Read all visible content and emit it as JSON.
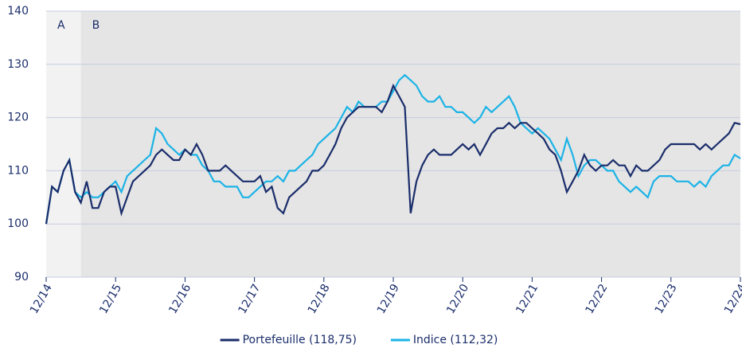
{
  "chart_data": {
    "type": "line",
    "x": [
      "12/14",
      "01/15",
      "02/15",
      "03/15",
      "04/15",
      "05/15",
      "06/15",
      "07/15",
      "08/15",
      "09/15",
      "10/15",
      "11/15",
      "12/15",
      "01/16",
      "02/16",
      "03/16",
      "04/16",
      "05/16",
      "06/16",
      "07/16",
      "08/16",
      "09/16",
      "10/16",
      "11/16",
      "12/16",
      "01/17",
      "02/17",
      "03/17",
      "04/17",
      "05/17",
      "06/17",
      "07/17",
      "08/17",
      "09/17",
      "10/17",
      "11/17",
      "12/17",
      "01/18",
      "02/18",
      "03/18",
      "04/18",
      "05/18",
      "06/18",
      "07/18",
      "08/18",
      "09/18",
      "10/18",
      "11/18",
      "12/18",
      "01/19",
      "02/19",
      "03/19",
      "04/19",
      "05/19",
      "06/19",
      "07/19",
      "08/19",
      "09/19",
      "10/19",
      "11/19",
      "12/19",
      "01/20",
      "02/20",
      "03/20",
      "04/20",
      "05/20",
      "06/20",
      "07/20",
      "08/20",
      "09/20",
      "10/20",
      "11/20",
      "12/20",
      "01/21",
      "02/21",
      "03/21",
      "04/21",
      "05/21",
      "06/21",
      "07/21",
      "08/21",
      "09/21",
      "10/21",
      "11/21",
      "12/21",
      "01/22",
      "02/22",
      "03/22",
      "04/22",
      "05/22",
      "06/22",
      "07/22",
      "08/22",
      "09/22",
      "10/22",
      "11/22",
      "12/22",
      "01/23",
      "02/23",
      "03/23",
      "04/23",
      "05/23",
      "06/23",
      "07/23",
      "08/23",
      "09/23",
      "10/23",
      "11/23",
      "12/23",
      "01/24",
      "02/24",
      "03/24",
      "04/24",
      "05/24",
      "06/24",
      "07/24",
      "08/24",
      "09/24",
      "10/24",
      "11/24",
      "12/24"
    ],
    "series": [
      {
        "name": "Portefeuille (118,75)",
        "color": "#1a2d6b",
        "values": [
          100,
          107,
          106,
          110,
          112,
          106,
          104,
          108,
          103,
          103,
          106,
          107,
          107,
          102,
          105,
          108,
          109,
          110,
          111,
          113,
          114,
          113,
          112,
          112,
          114,
          113,
          115,
          113,
          110,
          110,
          110,
          111,
          110,
          109,
          108,
          108,
          108,
          109,
          106,
          107,
          103,
          102,
          105,
          106,
          107,
          108,
          110,
          110,
          111,
          113,
          115,
          118,
          120,
          121,
          122,
          122,
          122,
          122,
          121,
          123,
          126,
          124,
          122,
          102,
          108,
          111,
          113,
          114,
          113,
          113,
          113,
          114,
          115,
          114,
          115,
          113,
          115,
          117,
          118,
          118,
          119,
          118,
          119,
          119,
          118,
          117,
          116,
          114,
          113,
          110,
          106,
          108,
          110,
          113,
          111,
          110,
          111,
          111,
          112,
          111,
          111,
          109,
          111,
          110,
          110,
          111,
          112,
          114,
          115,
          115,
          115,
          115,
          115,
          114,
          115,
          114,
          115,
          116,
          117,
          119,
          118.75
        ]
      },
      {
        "name": "Indice (112,32)",
        "color": "#1bb3e6",
        "values": [
          100,
          107,
          106,
          110,
          112,
          106,
          105,
          106,
          105,
          105,
          106,
          107,
          108,
          106,
          109,
          110,
          111,
          112,
          113,
          118,
          117,
          115,
          114,
          113,
          114,
          113,
          113,
          111,
          110,
          108,
          108,
          107,
          107,
          107,
          105,
          105,
          106,
          107,
          108,
          108,
          109,
          108,
          110,
          110,
          111,
          112,
          113,
          115,
          116,
          117,
          118,
          120,
          122,
          121,
          123,
          122,
          122,
          122,
          123,
          123,
          125,
          127,
          128,
          127,
          126,
          124,
          123,
          123,
          124,
          122,
          122,
          121,
          121,
          120,
          119,
          120,
          122,
          121,
          122,
          123,
          124,
          122,
          119,
          118,
          117,
          118,
          117,
          116,
          114,
          112,
          116,
          113,
          109,
          111,
          112,
          112,
          111,
          110,
          110,
          108,
          107,
          106,
          107,
          106,
          105,
          108,
          109,
          109,
          109,
          108,
          108,
          108,
          107,
          108,
          107,
          109,
          110,
          111,
          111,
          113,
          112.32
        ]
      }
    ],
    "xticks": [
      "12/14",
      "12/15",
      "12/16",
      "12/17",
      "12/18",
      "12/19",
      "12/20",
      "12/21",
      "12/22",
      "12/23",
      "12/24"
    ],
    "ylim": [
      90,
      140
    ],
    "yticks": [
      90,
      100,
      110,
      120,
      130,
      140
    ],
    "grid": true,
    "regions": [
      {
        "label": "A",
        "start": "12/14",
        "end": "06/15",
        "color": "#f2f2f2"
      },
      {
        "label": "B",
        "start": "06/15",
        "end": "12/24",
        "color": "#e5e5e5"
      }
    ]
  }
}
